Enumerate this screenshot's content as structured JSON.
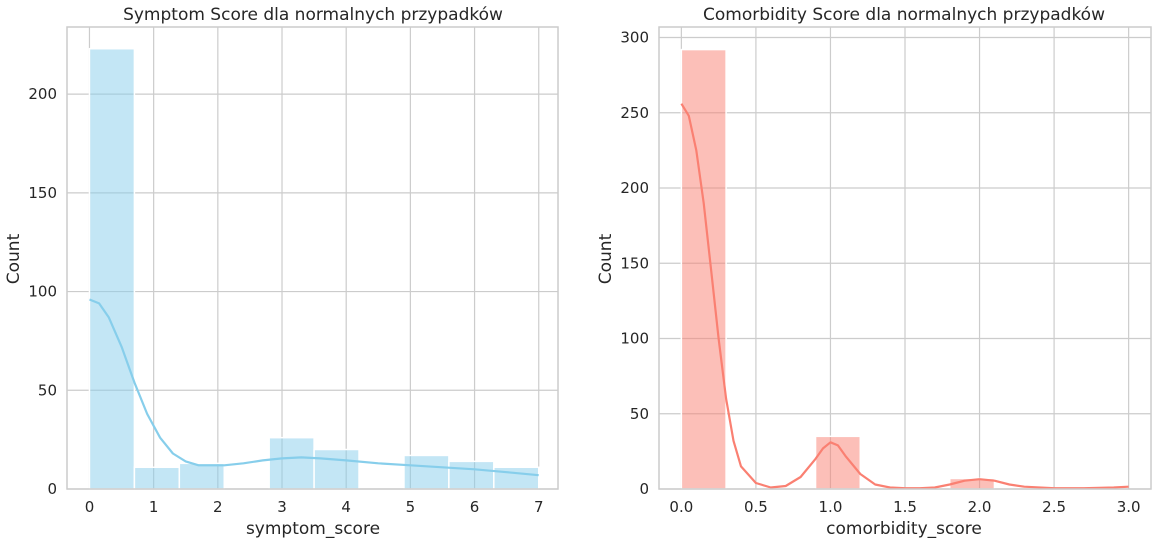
{
  "chart_data": [
    {
      "type": "bar",
      "title": "Symptom Score dla normalnych przypadków",
      "xlabel": "symptom_score",
      "ylabel": "Count",
      "xlim": [
        -0.35,
        7.3
      ],
      "ylim": [
        0,
        234
      ],
      "xticks": [
        0,
        1,
        2,
        3,
        4,
        5,
        6,
        7
      ],
      "xtick_labels": [
        "0",
        "1",
        "2",
        "3",
        "4",
        "5",
        "6",
        "7"
      ],
      "yticks": [
        0,
        50,
        100,
        150,
        200
      ],
      "ytick_labels": [
        "0",
        "50",
        "100",
        "150",
        "200"
      ],
      "grid": true,
      "color": "#87ceeb",
      "bins": [
        {
          "x0": 0.0,
          "x1": 0.7,
          "count": 223
        },
        {
          "x0": 0.7,
          "x1": 1.4,
          "count": 11
        },
        {
          "x0": 1.4,
          "x1": 2.1,
          "count": 13
        },
        {
          "x0": 2.1,
          "x1": 2.8,
          "count": 0
        },
        {
          "x0": 2.8,
          "x1": 3.5,
          "count": 26
        },
        {
          "x0": 3.5,
          "x1": 4.2,
          "count": 20
        },
        {
          "x0": 4.2,
          "x1": 4.9,
          "count": 0
        },
        {
          "x0": 4.9,
          "x1": 5.6,
          "count": 17
        },
        {
          "x0": 5.6,
          "x1": 6.3,
          "count": 14
        },
        {
          "x0": 6.3,
          "x1": 7.0,
          "count": 11
        }
      ],
      "kde": {
        "x": [
          0,
          0.15,
          0.3,
          0.5,
          0.7,
          0.9,
          1.1,
          1.3,
          1.5,
          1.7,
          1.9,
          2.1,
          2.4,
          2.7,
          3.0,
          3.3,
          3.6,
          4.0,
          4.5,
          5.0,
          5.5,
          6.0,
          6.5,
          7.0
        ],
        "y": [
          96,
          94,
          87,
          72,
          54,
          38,
          26,
          18,
          14,
          12,
          12,
          12,
          13,
          14.5,
          15.5,
          16,
          15.5,
          14.5,
          13,
          12,
          11,
          10,
          8.5,
          7
        ]
      }
    },
    {
      "type": "bar",
      "title": "Comorbidity Score dla normalnych przypadków",
      "xlabel": "comorbidity_score",
      "ylabel": "Count",
      "xlim": [
        -0.15,
        3.15
      ],
      "ylim": [
        0,
        307
      ],
      "xticks": [
        0.0,
        0.5,
        1.0,
        1.5,
        2.0,
        2.5,
        3.0
      ],
      "xtick_labels": [
        "0.0",
        "0.5",
        "1.0",
        "1.5",
        "2.0",
        "2.5",
        "3.0"
      ],
      "yticks": [
        0,
        50,
        100,
        150,
        200,
        250,
        300
      ],
      "ytick_labels": [
        "0",
        "50",
        "100",
        "150",
        "200",
        "250",
        "300"
      ],
      "grid": true,
      "color": "#fa8072",
      "bins": [
        {
          "x0": 0.0,
          "x1": 0.3,
          "count": 292
        },
        {
          "x0": 0.9,
          "x1": 1.2,
          "count": 35
        },
        {
          "x0": 1.8,
          "x1": 2.1,
          "count": 7
        }
      ],
      "kde": {
        "x": [
          0,
          0.05,
          0.1,
          0.15,
          0.2,
          0.25,
          0.3,
          0.35,
          0.4,
          0.5,
          0.6,
          0.7,
          0.8,
          0.9,
          0.95,
          1.0,
          1.05,
          1.1,
          1.2,
          1.3,
          1.4,
          1.5,
          1.6,
          1.7,
          1.8,
          1.9,
          2.0,
          2.1,
          2.2,
          2.3,
          2.5,
          2.7,
          2.9,
          3.0
        ],
        "y": [
          256,
          248,
          225,
          190,
          145,
          100,
          60,
          32,
          15,
          4,
          1,
          2,
          8,
          20,
          27,
          31,
          29,
          22,
          10,
          3,
          1,
          0.5,
          0.5,
          1,
          3,
          5.5,
          6.5,
          5.5,
          3,
          1.5,
          0.5,
          0.5,
          1,
          1.5
        ]
      }
    }
  ]
}
